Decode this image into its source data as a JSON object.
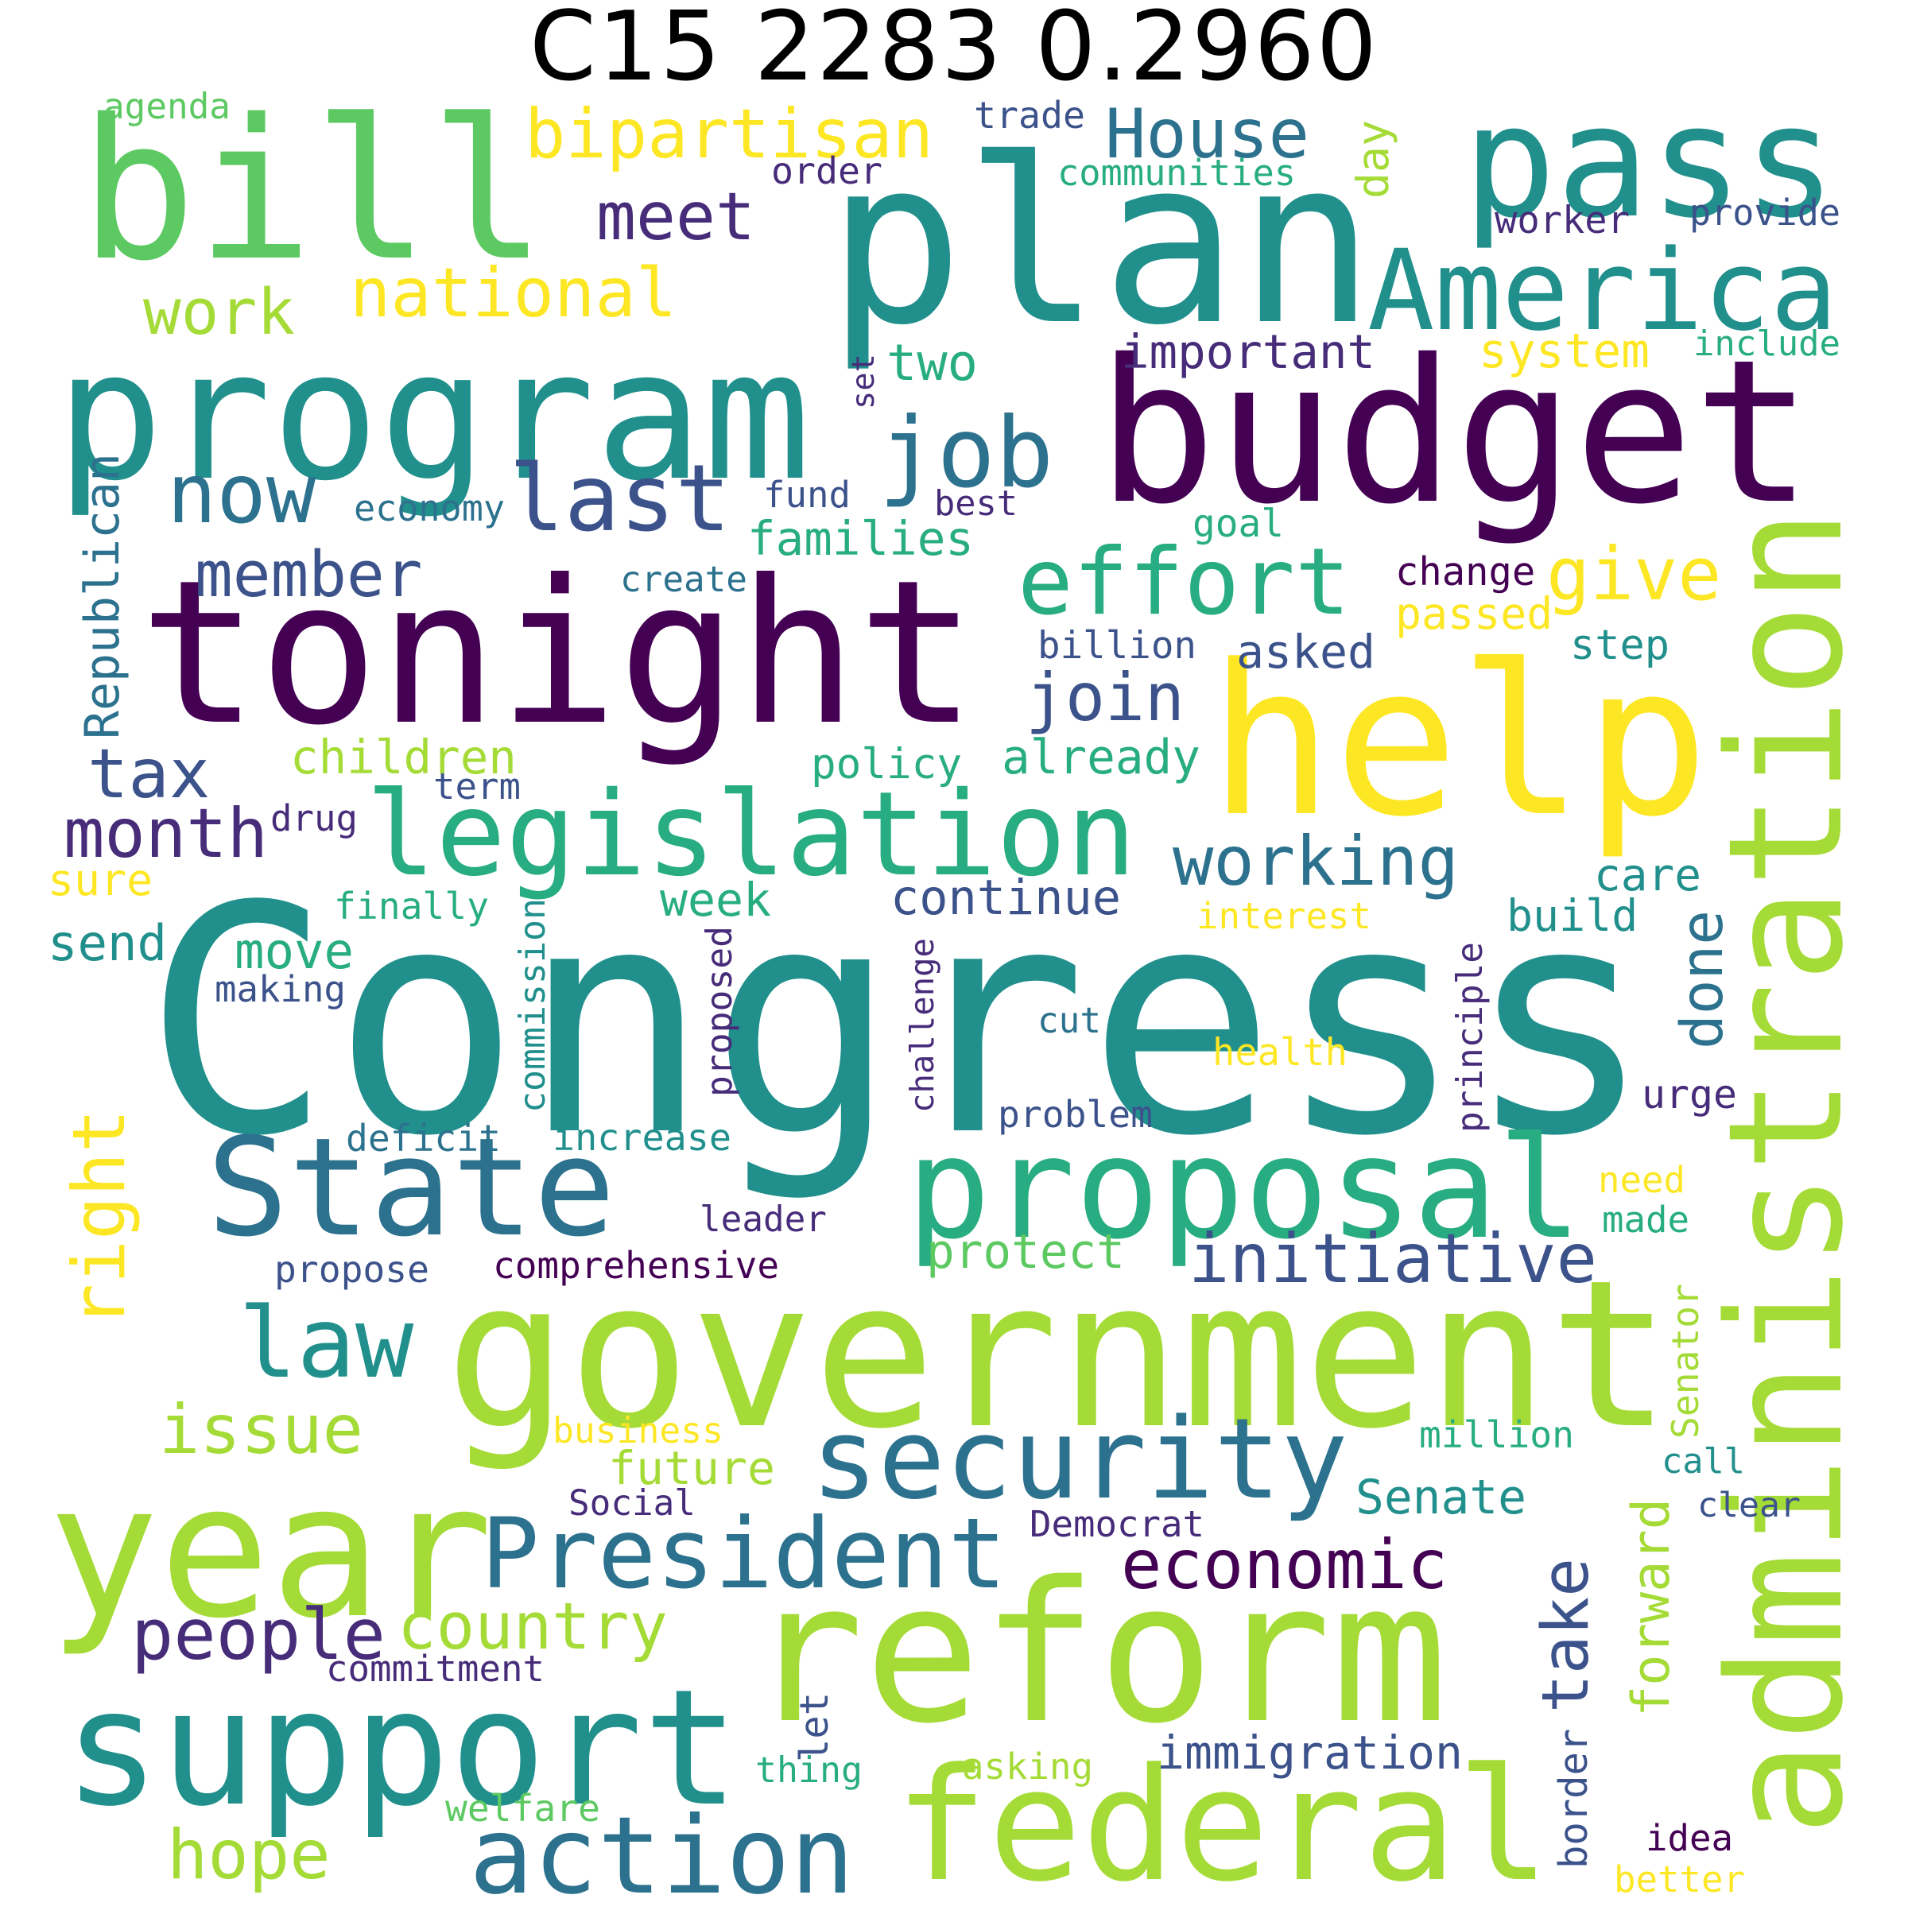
{
  "title": "C15 2283 0.2960",
  "palette": {
    "c1": "#440154",
    "c2": "#472c7a",
    "c3": "#3b528b",
    "c4": "#2c728e",
    "c5": "#21908d",
    "c6": "#27ad81",
    "c7": "#5dc962",
    "c8": "#a5db36",
    "c9": "#fde725"
  },
  "words": [
    {
      "text": "Congress",
      "color": "c5"
    },
    {
      "text": "tonight",
      "color": "c1"
    },
    {
      "text": "plan",
      "color": "c5"
    },
    {
      "text": "budget",
      "color": "c1"
    },
    {
      "text": "bill",
      "color": "c7"
    },
    {
      "text": "help",
      "color": "c9"
    },
    {
      "text": "government",
      "color": "c8"
    },
    {
      "text": "reform",
      "color": "c8"
    },
    {
      "text": "administration",
      "color": "c8"
    },
    {
      "text": "program",
      "color": "c5"
    },
    {
      "text": "pass",
      "color": "c5"
    },
    {
      "text": "support",
      "color": "c5"
    },
    {
      "text": "year",
      "color": "c8"
    },
    {
      "text": "federal",
      "color": "c8"
    },
    {
      "text": "State",
      "color": "c4"
    },
    {
      "text": "proposal",
      "color": "c6"
    },
    {
      "text": "America",
      "color": "c5"
    },
    {
      "text": "legislation",
      "color": "c6"
    },
    {
      "text": "security",
      "color": "c4"
    },
    {
      "text": "President",
      "color": "c4"
    },
    {
      "text": "action",
      "color": "c4"
    },
    {
      "text": "job",
      "color": "c4"
    },
    {
      "text": "take",
      "color": "c3"
    },
    {
      "text": "law",
      "color": "c5"
    },
    {
      "text": "right",
      "color": "c9"
    },
    {
      "text": "effort",
      "color": "c6"
    },
    {
      "text": "last",
      "color": "c3"
    },
    {
      "text": "now",
      "color": "c4"
    },
    {
      "text": "bipartisan",
      "color": "c9"
    },
    {
      "text": "national",
      "color": "c9"
    },
    {
      "text": "House",
      "color": "c4"
    },
    {
      "text": "initiative",
      "color": "c3"
    },
    {
      "text": "working",
      "color": "c4"
    },
    {
      "text": "economic",
      "color": "c1"
    },
    {
      "text": "country",
      "color": "c8"
    },
    {
      "text": "people",
      "color": "c2"
    },
    {
      "text": "forward",
      "color": "c8"
    },
    {
      "text": "hope",
      "color": "c8"
    },
    {
      "text": "issue",
      "color": "c8"
    },
    {
      "text": "month",
      "color": "c2"
    },
    {
      "text": "member",
      "color": "c3"
    },
    {
      "text": "give",
      "color": "c9"
    },
    {
      "text": "join",
      "color": "c3"
    },
    {
      "text": "meet",
      "color": "c2"
    },
    {
      "text": "tax",
      "color": "c3"
    },
    {
      "text": "immigration",
      "color": "c3"
    },
    {
      "text": "done",
      "color": "c4"
    },
    {
      "text": "work",
      "color": "c8"
    },
    {
      "text": "Senate",
      "color": "c5"
    },
    {
      "text": "future",
      "color": "c8"
    },
    {
      "text": "continue",
      "color": "c3"
    },
    {
      "text": "protect",
      "color": "c7"
    },
    {
      "text": "families",
      "color": "c6"
    },
    {
      "text": "children",
      "color": "c8"
    },
    {
      "text": "already",
      "color": "c6"
    },
    {
      "text": "important",
      "color": "c2"
    },
    {
      "text": "asked",
      "color": "c3"
    },
    {
      "text": "week",
      "color": "c6"
    },
    {
      "text": "move",
      "color": "c6"
    },
    {
      "text": "two",
      "color": "c6"
    },
    {
      "text": "system",
      "color": "c9"
    },
    {
      "text": "step",
      "color": "c5"
    },
    {
      "text": "care",
      "color": "c5"
    },
    {
      "text": "send",
      "color": "c5"
    },
    {
      "text": "Republican",
      "color": "c4"
    },
    {
      "text": "comprehensive",
      "color": "c1"
    },
    {
      "text": "communities",
      "color": "c6"
    },
    {
      "text": "agenda",
      "color": "c7"
    },
    {
      "text": "trade",
      "color": "c3"
    },
    {
      "text": "order",
      "color": "c2"
    },
    {
      "text": "day",
      "color": "c8"
    },
    {
      "text": "worker",
      "color": "c2"
    },
    {
      "text": "provide",
      "color": "c3"
    },
    {
      "text": "include",
      "color": "c6"
    },
    {
      "text": "set",
      "color": "c2"
    },
    {
      "text": "economy",
      "color": "c4"
    },
    {
      "text": "fund",
      "color": "c3"
    },
    {
      "text": "best",
      "color": "c2"
    },
    {
      "text": "goal",
      "color": "c6"
    },
    {
      "text": "change",
      "color": "c1"
    },
    {
      "text": "passed",
      "color": "c9"
    },
    {
      "text": "create",
      "color": "c4"
    },
    {
      "text": "billion",
      "color": "c3"
    },
    {
      "text": "policy",
      "color": "c6"
    },
    {
      "text": "term",
      "color": "c3"
    },
    {
      "text": "drug",
      "color": "c2"
    },
    {
      "text": "sure",
      "color": "c9"
    },
    {
      "text": "finally",
      "color": "c6"
    },
    {
      "text": "interest",
      "color": "c9"
    },
    {
      "text": "build",
      "color": "c5"
    },
    {
      "text": "making",
      "color": "c3"
    },
    {
      "text": "commission",
      "color": "c5"
    },
    {
      "text": "proposed",
      "color": "c2"
    },
    {
      "text": "challenge",
      "color": "c2"
    },
    {
      "text": "principle",
      "color": "c2"
    },
    {
      "text": "cut",
      "color": "c4"
    },
    {
      "text": "health",
      "color": "c9"
    },
    {
      "text": "urge",
      "color": "c2"
    },
    {
      "text": "problem",
      "color": "c3"
    },
    {
      "text": "deficit",
      "color": "c4"
    },
    {
      "text": "increase",
      "color": "c5"
    },
    {
      "text": "need",
      "color": "c9"
    },
    {
      "text": "made",
      "color": "c6"
    },
    {
      "text": "leader",
      "color": "c2"
    },
    {
      "text": "propose",
      "color": "c3"
    },
    {
      "text": "Senator",
      "color": "c8"
    },
    {
      "text": "business",
      "color": "c9"
    },
    {
      "text": "million",
      "color": "c6"
    },
    {
      "text": "Social",
      "color": "c2"
    },
    {
      "text": "Democrat",
      "color": "c2"
    },
    {
      "text": "call",
      "color": "c5"
    },
    {
      "text": "clear",
      "color": "c3"
    },
    {
      "text": "commitment",
      "color": "c2"
    },
    {
      "text": "let",
      "color": "c3"
    },
    {
      "text": "thing",
      "color": "c6"
    },
    {
      "text": "asking",
      "color": "c8"
    },
    {
      "text": "border",
      "color": "c3"
    },
    {
      "text": "welfare",
      "color": "c7"
    },
    {
      "text": "idea",
      "color": "c1"
    },
    {
      "text": "better",
      "color": "c9"
    }
  ]
}
